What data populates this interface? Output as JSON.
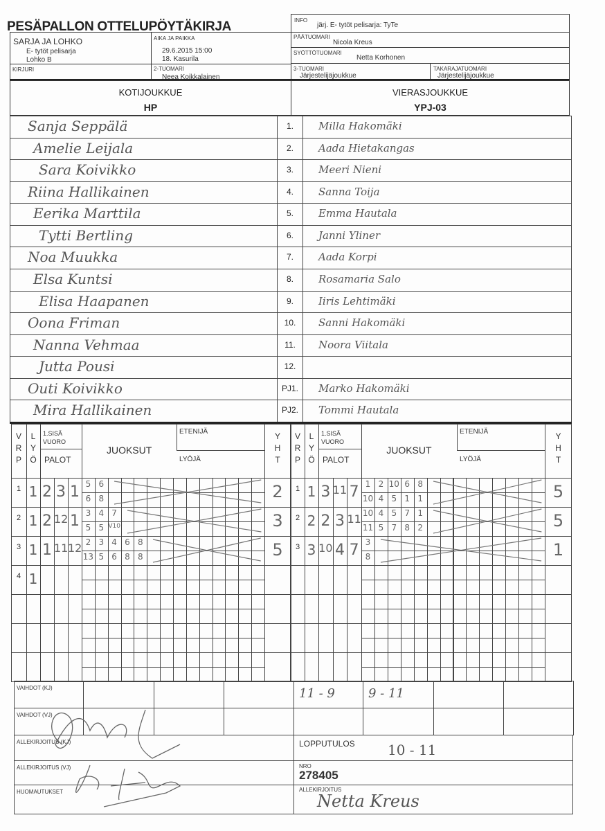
{
  "title": "PESÄPALLON OTTELUPÖYTÄKIRJA",
  "header": {
    "info_label": "INFO",
    "info": "järj. E- tytöt pelisarja: TyTe",
    "sarja_label": "SARJA JA LOHKO",
    "sarja": "E- tytöt pelisarja",
    "lohko": "Lohko B",
    "aika_label": "AIKA JA PAIKKA",
    "aika": "29.6.2015 15:00",
    "paikka": "18. Kasurila",
    "paatuomari_label": "PÄÄTUOMARI",
    "paatuomari": "Nicola Kreus",
    "syottotuomari_label": "SYÖTTÖTUOMARI",
    "syottotuomari": "Netta Korhonen",
    "kirjuri_label": "KIRJURI",
    "tuomari2_label": "2-TUOMARI",
    "tuomari2": "Neea Koikkalainen",
    "tuomari3_label": "3-TUOMARI",
    "tuomari3": "Järjestelijäjoukkue",
    "takaraja_label": "TAKARAJATUOMARI",
    "takaraja": "Järjestelijäjoukkue"
  },
  "teams": {
    "home_label": "KOTIJOUKKUE",
    "home": "HP",
    "away_label": "VIERASJOUKKUE",
    "away": "YPJ-03"
  },
  "roster": [
    {
      "no": "1.",
      "home": "Sanja Seppälä",
      "away": "Milla Hakomäki"
    },
    {
      "no": "2.",
      "home": "Amelie Leijala",
      "away": "Aada Hietakangas"
    },
    {
      "no": "3.",
      "home": "Sara Koivikko",
      "away": "Meeri Nieni"
    },
    {
      "no": "4.",
      "home": "Riina Hallikainen",
      "away": "Sanna Toija"
    },
    {
      "no": "5.",
      "home": "Eerika Marttila",
      "away": "Emma Hautala"
    },
    {
      "no": "6.",
      "home": "Tytti Bertling",
      "away": "Janni Yliner"
    },
    {
      "no": "7.",
      "home": "Noa Muukka",
      "away": "Aada Korpi"
    },
    {
      "no": "8.",
      "home": "Elsa Kuntsi",
      "away": "Rosamaria Salo"
    },
    {
      "no": "9.",
      "home": "Elisa Haapanen",
      "away": "Iiris Lehtimäki"
    },
    {
      "no": "10.",
      "home": "Oona Friman",
      "away": "Sanni Hakomäki"
    },
    {
      "no": "11.",
      "home": "Nanna Vehmaa",
      "away": "Noora Viitala"
    },
    {
      "no": "12.",
      "home": "Jutta Pousi",
      "away": ""
    },
    {
      "no": "PJ1.",
      "home": "Outi Koivikko",
      "away": "Marko Hakomäki"
    },
    {
      "no": "PJ2.",
      "home": "Mira Hallikainen",
      "away": "Tommi Hautala"
    }
  ],
  "grid_headers": {
    "vrp": [
      "V",
      "R",
      "P"
    ],
    "lyo": [
      "L",
      "Y",
      "Ö"
    ],
    "sisavuoro": "1.SISÄ VUORO",
    "palot": "PALOT",
    "juoksut": "JUOKSUT",
    "etenija": "ETENIJÄ",
    "lyoja": "LYÖJÄ",
    "yht": [
      "Y",
      "H",
      "T"
    ]
  },
  "innings": {
    "home": [
      {
        "vrp": "1",
        "lyo": "1",
        "palot": [
          "2",
          "3",
          "1"
        ],
        "top": [
          "5",
          "6"
        ],
        "bottom": [
          "6",
          "8"
        ],
        "yht": "2"
      },
      {
        "vrp": "2",
        "lyo": "1",
        "palot": [
          "2",
          "12",
          "1"
        ],
        "top": [
          "3",
          "4",
          "7"
        ],
        "bottom": [
          "5",
          "5",
          "V10"
        ],
        "yht": "3"
      },
      {
        "vrp": "3",
        "lyo": "1",
        "palot": [
          "1",
          "11",
          "12"
        ],
        "top": [
          "2",
          "3",
          "4",
          "6",
          "8"
        ],
        "bottom": [
          "13",
          "5",
          "6",
          "8",
          "8"
        ],
        "yht": "5"
      },
      {
        "vrp": "4",
        "lyo": "1",
        "palot": [],
        "top": [],
        "bottom": [],
        "yht": ""
      }
    ],
    "away": [
      {
        "vrp": "1",
        "lyo": "1",
        "palot": [
          "3",
          "11",
          "7"
        ],
        "top": [
          "1",
          "2",
          "10",
          "6",
          "8"
        ],
        "bottom": [
          "10",
          "4",
          "5",
          "1",
          "1"
        ],
        "yht": "5"
      },
      {
        "vrp": "2",
        "lyo": "2",
        "palot": [
          "2",
          "3",
          "11"
        ],
        "top": [
          "10",
          "4",
          "5",
          "7",
          "1"
        ],
        "bottom": [
          "11",
          "5",
          "7",
          "8",
          "2"
        ],
        "yht": "5"
      },
      {
        "vrp": "3",
        "lyo": "3",
        "palot": [
          "10",
          "4",
          "7"
        ],
        "top": [
          "3"
        ],
        "bottom": [
          "8"
        ],
        "yht": "1"
      }
    ]
  },
  "footer": {
    "vaihdot_kj_label": "VAIHDOT (KJ)",
    "vaihdot_kj": [
      "",
      "",
      "",
      "",
      "11 - 9",
      "9 - 11",
      "",
      ""
    ],
    "vaihdot_vj_label": "VAIHDOT (VJ)",
    "allekirjoitus_kj_label": "ALLEKIRJOITUS (KJ)",
    "allekirjoitus_vj_label": "ALLEKIRJOITUS (VJ)",
    "huomautukset_label": "HUOMAUTUKSET",
    "lopputulos_label": "LOPPUTULOS",
    "lopputulos": "10 - 11",
    "nro_label": "NRO",
    "nro": "278405",
    "allekirjoitus_label": "ALLEKIRJOITUS",
    "allekirjoitus": "Netta Kreus"
  }
}
